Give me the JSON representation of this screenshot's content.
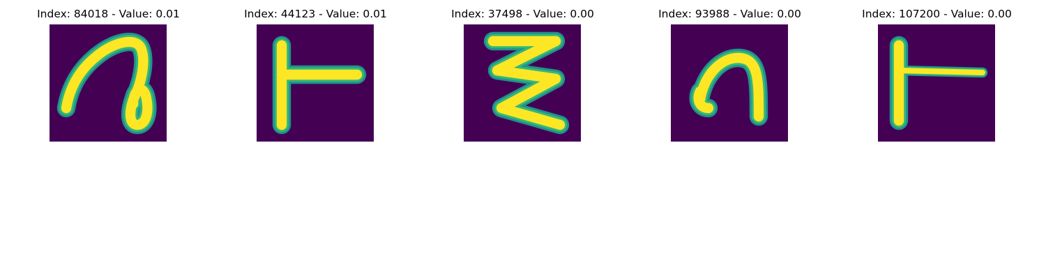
{
  "colors": {
    "background": "#440154",
    "stroke_core": "#fde725",
    "stroke_mid": "#35b779",
    "stroke_halo": "#21918c"
  },
  "panels": [
    {
      "title": "Index: 84018 - Value: 0.01",
      "glyph": "cursive-a-loop"
    },
    {
      "title": "Index: 44123 - Value: 0.01",
      "glyph": "sideways-t"
    },
    {
      "title": "Index: 37498 - Value: 0.00",
      "glyph": "zigzag"
    },
    {
      "title": "Index: 93988 - Value: 0.00",
      "glyph": "n-shape"
    },
    {
      "title": "Index: 107200 - Value: 0.00",
      "glyph": "sideways-t-thin"
    }
  ]
}
